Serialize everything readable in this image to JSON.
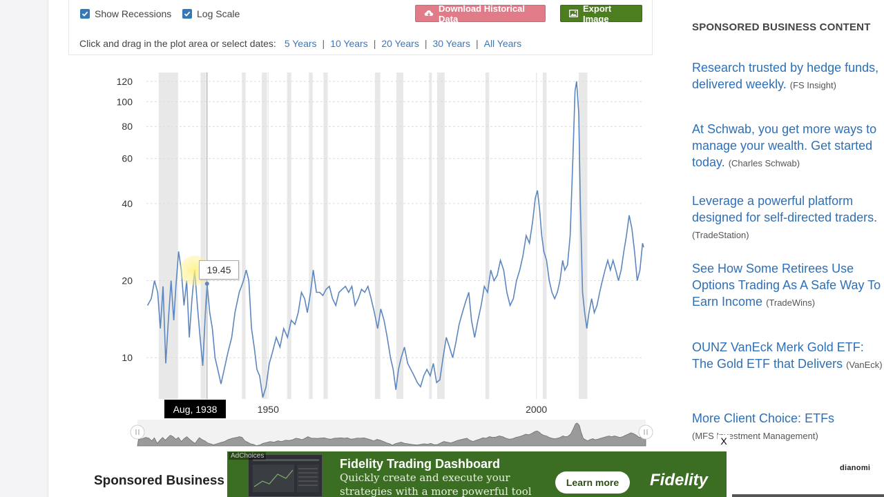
{
  "toolbar": {
    "show_recessions": "Show Recessions",
    "log_scale": "Log Scale",
    "download_label": "Download Historical Data",
    "export_label": "Export Image",
    "range_prompt": "Click and drag in the plot area or select dates:",
    "ranges": [
      "5 Years",
      "10 Years",
      "20 Years",
      "30 Years",
      "All Years"
    ],
    "range_separator": "|"
  },
  "chart_data": {
    "type": "line",
    "scale": "log",
    "ylim": [
      6.9,
      130
    ],
    "xlim": [
      1927.3,
      2020.0
    ],
    "y_ticks": [
      "10",
      "20",
      "40",
      "60",
      "80",
      "100",
      "120"
    ],
    "x_ticks": [
      "1950",
      "2000"
    ],
    "recessions": [
      [
        1929.6,
        1933.2
      ],
      [
        1937.4,
        1938.4
      ],
      [
        1945.1,
        1945.8
      ],
      [
        1948.8,
        1949.8
      ],
      [
        1953.5,
        1954.3
      ],
      [
        1957.6,
        1958.3
      ],
      [
        1960.3,
        1961.1
      ],
      [
        1969.9,
        1970.9
      ],
      [
        1973.9,
        1975.2
      ],
      [
        1980.0,
        1980.5
      ],
      [
        1981.5,
        1982.9
      ],
      [
        1990.5,
        1991.2
      ],
      [
        2001.2,
        2001.9
      ],
      [
        2007.9,
        2009.5
      ]
    ],
    "series": [
      {
        "points": [
          [
            1927.5,
            16
          ],
          [
            1928.2,
            17
          ],
          [
            1928.8,
            20
          ],
          [
            1929.4,
            18
          ],
          [
            1929.9,
            13
          ],
          [
            1930.4,
            19
          ],
          [
            1930.9,
            9.5
          ],
          [
            1931.4,
            14
          ],
          [
            1931.9,
            20
          ],
          [
            1932.4,
            14
          ],
          [
            1932.8,
            19
          ],
          [
            1933.3,
            26
          ],
          [
            1933.8,
            22
          ],
          [
            1934.3,
            16
          ],
          [
            1934.8,
            20
          ],
          [
            1935.3,
            12
          ],
          [
            1935.8,
            17
          ],
          [
            1936.3,
            22
          ],
          [
            1936.8,
            16
          ],
          [
            1937.3,
            12
          ],
          [
            1937.8,
            9.3
          ],
          [
            1938.3,
            15
          ],
          [
            1938.6,
            19.45
          ],
          [
            1939.1,
            15
          ],
          [
            1939.6,
            13
          ],
          [
            1940.1,
            10
          ],
          [
            1940.6,
            9.0
          ],
          [
            1941.2,
            7.9
          ],
          [
            1941.8,
            9.0
          ],
          [
            1942.5,
            10.5
          ],
          [
            1943.2,
            12
          ],
          [
            1943.8,
            15
          ],
          [
            1944.6,
            18
          ],
          [
            1945.4,
            20
          ],
          [
            1945.9,
            22
          ],
          [
            1946.4,
            20
          ],
          [
            1946.9,
            13
          ],
          [
            1947.4,
            11
          ],
          [
            1947.9,
            9.0
          ],
          [
            1948.4,
            8.5
          ],
          [
            1949.0,
            7.0
          ],
          [
            1949.6,
            7.7
          ],
          [
            1950.2,
            9.5
          ],
          [
            1950.8,
            10.5
          ],
          [
            1951.5,
            12
          ],
          [
            1952.2,
            11
          ],
          [
            1952.9,
            13
          ],
          [
            1953.6,
            12
          ],
          [
            1954.3,
            14
          ],
          [
            1955.0,
            13.5
          ],
          [
            1955.6,
            15
          ],
          [
            1956.2,
            18
          ],
          [
            1956.8,
            17
          ],
          [
            1957.3,
            15
          ],
          [
            1957.9,
            18
          ],
          [
            1958.4,
            22
          ],
          [
            1959.0,
            18
          ],
          [
            1959.6,
            18
          ],
          [
            1960.2,
            17.5
          ],
          [
            1960.8,
            18.5
          ],
          [
            1961.4,
            19
          ],
          [
            1962.0,
            17
          ],
          [
            1962.6,
            16
          ],
          [
            1963.2,
            18
          ],
          [
            1963.8,
            18.5
          ],
          [
            1964.4,
            19
          ],
          [
            1965.0,
            18
          ],
          [
            1965.6,
            19
          ],
          [
            1966.2,
            16
          ],
          [
            1966.8,
            17
          ],
          [
            1967.4,
            18.5
          ],
          [
            1968.0,
            18
          ],
          [
            1968.6,
            19
          ],
          [
            1969.2,
            17
          ],
          [
            1969.8,
            15
          ],
          [
            1970.4,
            13
          ],
          [
            1971.0,
            15.5
          ],
          [
            1971.6,
            14
          ],
          [
            1972.2,
            12
          ],
          [
            1972.8,
            10
          ],
          [
            1973.3,
            9.0
          ],
          [
            1973.8,
            7.5
          ],
          [
            1974.3,
            9.0
          ],
          [
            1974.8,
            10
          ],
          [
            1975.4,
            11
          ],
          [
            1976.0,
            9.5
          ],
          [
            1976.6,
            9.0
          ],
          [
            1977.2,
            8.5
          ],
          [
            1977.8,
            8.0
          ],
          [
            1978.4,
            7.7
          ],
          [
            1979.0,
            8.5
          ],
          [
            1979.6,
            9.0
          ],
          [
            1980.2,
            8.5
          ],
          [
            1980.8,
            9.5
          ],
          [
            1981.4,
            8.0
          ],
          [
            1982.0,
            8.2
          ],
          [
            1982.6,
            10
          ],
          [
            1983.2,
            12
          ],
          [
            1983.8,
            11
          ],
          [
            1984.4,
            10
          ],
          [
            1985.0,
            11.5
          ],
          [
            1985.6,
            13.5
          ],
          [
            1986.2,
            15
          ],
          [
            1986.8,
            16.5
          ],
          [
            1987.4,
            18
          ],
          [
            1987.9,
            14
          ],
          [
            1988.5,
            12
          ],
          [
            1989.1,
            14
          ],
          [
            1989.7,
            16
          ],
          [
            1990.3,
            19
          ],
          [
            1990.9,
            18
          ],
          [
            1991.5,
            22
          ],
          [
            1992.1,
            20
          ],
          [
            1992.7,
            21
          ],
          [
            1993.3,
            24
          ],
          [
            1993.9,
            22
          ],
          [
            1994.5,
            18
          ],
          [
            1995.1,
            16
          ],
          [
            1995.7,
            17
          ],
          [
            1996.3,
            20
          ],
          [
            1996.9,
            22
          ],
          [
            1997.5,
            25
          ],
          [
            1998.1,
            30
          ],
          [
            1998.7,
            28
          ],
          [
            1999.3,
            34
          ],
          [
            1999.8,
            42
          ],
          [
            2000.2,
            45
          ],
          [
            2000.6,
            38
          ],
          [
            2001.0,
            30
          ],
          [
            2001.4,
            26
          ],
          [
            2001.9,
            24
          ],
          [
            2002.4,
            20
          ],
          [
            2002.9,
            18
          ],
          [
            2003.4,
            17
          ],
          [
            2003.9,
            18
          ],
          [
            2004.4,
            20
          ],
          [
            2004.9,
            24
          ],
          [
            2005.3,
            22
          ],
          [
            2005.8,
            23
          ],
          [
            2006.3,
            30
          ],
          [
            2006.8,
            60
          ],
          [
            2007.2,
            110
          ],
          [
            2007.5,
            120
          ],
          [
            2007.9,
            90
          ],
          [
            2008.2,
            40
          ],
          [
            2008.6,
            18
          ],
          [
            2009.0,
            15
          ],
          [
            2009.4,
            13
          ],
          [
            2009.8,
            15
          ],
          [
            2010.3,
            17
          ],
          [
            2010.8,
            15
          ],
          [
            2011.3,
            16
          ],
          [
            2011.8,
            18
          ],
          [
            2012.3,
            20
          ],
          [
            2012.8,
            22
          ],
          [
            2013.3,
            24
          ],
          [
            2013.8,
            22
          ],
          [
            2014.3,
            24
          ],
          [
            2014.8,
            22
          ],
          [
            2015.3,
            20
          ],
          [
            2015.8,
            22
          ],
          [
            2016.3,
            26
          ],
          [
            2016.8,
            30
          ],
          [
            2017.3,
            36
          ],
          [
            2017.8,
            32
          ],
          [
            2018.3,
            26
          ],
          [
            2018.8,
            20
          ],
          [
            2019.3,
            22
          ],
          [
            2019.8,
            28
          ],
          [
            2020.0,
            27
          ]
        ]
      }
    ]
  },
  "tooltip": {
    "value": "19.45",
    "date": "Aug, 1938"
  },
  "sidebar": {
    "heading": "SPONSORED BUSINESS CONTENT",
    "items": [
      {
        "text": "Research trusted by hedge funds, delivered weekly.",
        "source": "(FS Insight)"
      },
      {
        "text": "At Schwab, you get more ways to manage your wealth. Get started today.",
        "source": "(Charles Schwab)"
      },
      {
        "text": "Leverage a powerful platform designed for self-directed traders.",
        "source": "(TradeStation)"
      },
      {
        "text": "See How Some Retirees Use Options Trading As A Safe Way To Earn Income",
        "source": "(TradeWins)"
      },
      {
        "text": "OUNZ VanEck Merk Gold ETF: The Gold ETF that Delivers",
        "source": "(VanEck)"
      },
      {
        "text": "More Client Choice: ETFs",
        "source": "(MFS Investment Management)"
      }
    ]
  },
  "bottom_title": "Sponsored Business",
  "banner": {
    "adchoices": "AdChoices",
    "title": "Fidelity Trading Dashboard",
    "desc": "Quickly create and execute your strategies with a more powerful tool",
    "cta": "Learn more",
    "brand": "Fidelity",
    "close": "X"
  },
  "dianomi": "dianomi",
  "colors": {
    "line": "#5b86bf",
    "recession": "#e8e8e8",
    "accent_link": "#3c77b8"
  }
}
